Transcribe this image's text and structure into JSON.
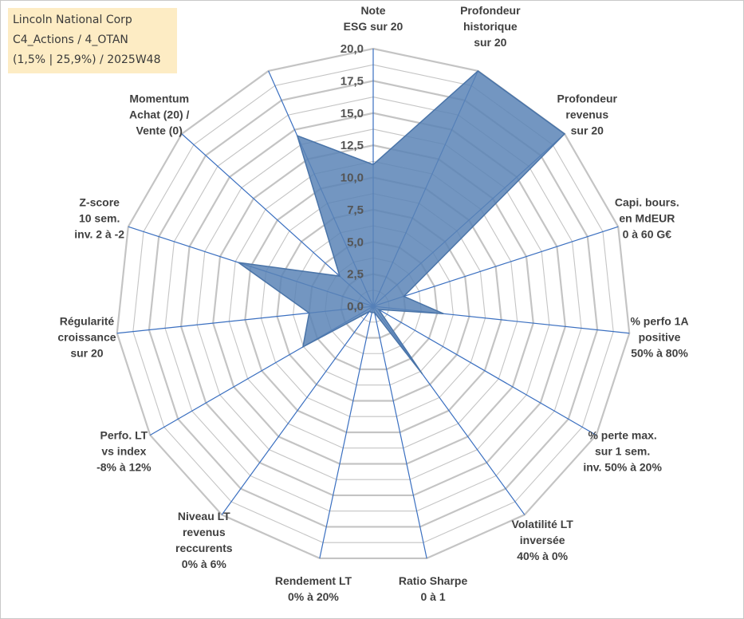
{
  "title_box": {
    "line1": "Lincoln National Corp",
    "line2": "C4_Actions / 4_OTAN",
    "line3": "(1,5% | 25,9%) / 2025W48"
  },
  "chart_data": {
    "type": "radar",
    "title": "",
    "rmin": 0,
    "rmax": 20,
    "tick_values": [
      0,
      2.5,
      5,
      7.5,
      10,
      12.5,
      15,
      17.5,
      20
    ],
    "tick_labels": [
      "0,0",
      "2,5",
      "5,0",
      "7,5",
      "10,0",
      "12,5",
      "15,0",
      "17,5",
      "20,0"
    ],
    "grid": true,
    "colors": {
      "fill": "#5b84b6",
      "stroke": "#4a74a8",
      "axis": "#3a6fc0",
      "grid": "#c4c4c4"
    },
    "axes": [
      {
        "label": [
          "Note",
          "ESG sur 20"
        ],
        "value": 11
      },
      {
        "label": [
          "Profondeur",
          "historique",
          "sur 20"
        ],
        "value": 20
      },
      {
        "label": [
          "Profondeur",
          "revenus",
          "sur 20"
        ],
        "value": 20
      },
      {
        "label": [
          "Capi. bours.",
          "en MdEUR",
          "0 à 60 G€"
        ],
        "value": 2.5
      },
      {
        "label": [
          "% perfo 1A",
          "positive",
          "50% à 80%"
        ],
        "value": 5.5
      },
      {
        "label": [
          "% perte max.",
          "sur 1 sem.",
          "inv. 50% à 20%"
        ],
        "value": 0.5
      },
      {
        "label": [
          "Volatilité LT",
          "inversée",
          "40% à 0%"
        ],
        "value": 6.5
      },
      {
        "label": [
          "Ratio Sharpe",
          "0 à 1"
        ],
        "value": 0.5
      },
      {
        "label": [
          "Rendement LT",
          "0% à 20%"
        ],
        "value": 0.5
      },
      {
        "label": [
          "Niveau LT",
          "revenus",
          "reccurents",
          "0% à 6%"
        ],
        "value": 0.5
      },
      {
        "label": [
          "Perfo. LT",
          "vs index",
          "-8% à 12%"
        ],
        "value": 6.3
      },
      {
        "label": [
          "Régularité",
          "croissance",
          "sur 20"
        ],
        "value": 5.0
      },
      {
        "label": [
          "Z-score",
          "10 sem.",
          "inv. 2 à -2"
        ],
        "value": 11.0
      },
      {
        "label": [
          "Momentum",
          "Achat (20) /",
          "Vente (0)"
        ],
        "value": 3.5
      },
      {
        "label": [
          "",
          ""
        ],
        "value": 14.5
      }
    ]
  }
}
